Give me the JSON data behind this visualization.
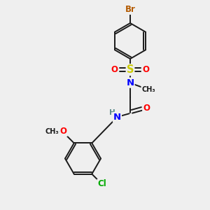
{
  "bg_color": "#efefef",
  "bond_color": "#1a1a1a",
  "atom_colors": {
    "Br": "#b35a00",
    "S": "#cccc00",
    "O": "#ff0000",
    "N": "#0000ff",
    "Cl": "#00aa00",
    "C": "#1a1a1a",
    "H": "#5a8a8a"
  },
  "font_size": 8.5,
  "figsize": [
    3.0,
    3.0
  ],
  "dpi": 100
}
